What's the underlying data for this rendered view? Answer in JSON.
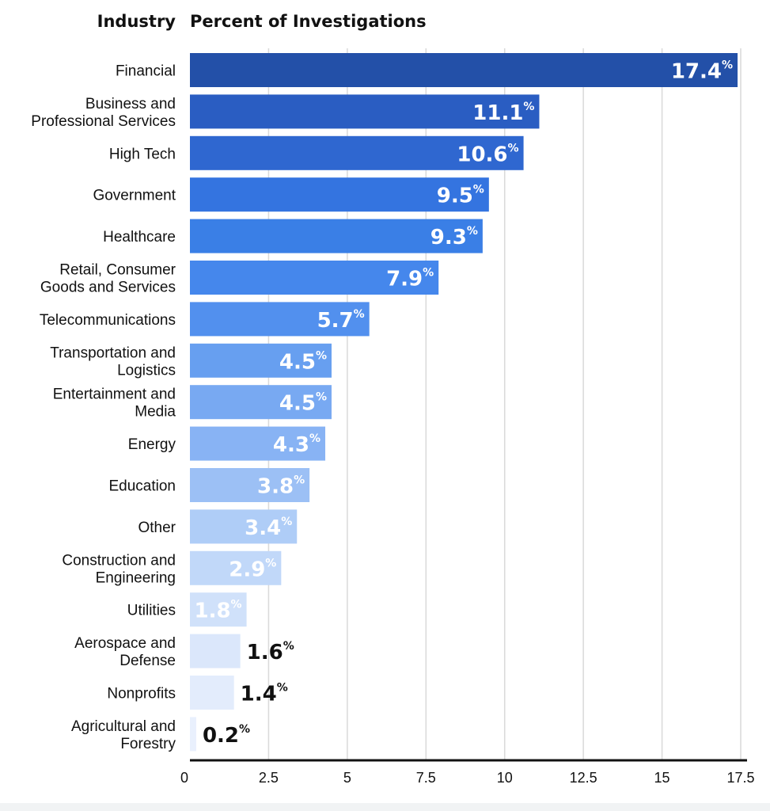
{
  "chart_data": {
    "type": "bar",
    "orientation": "horizontal",
    "category_header": "Industry",
    "value_header": "Percent of Investigations",
    "value_suffix": "%",
    "categories": [
      [
        "Financial"
      ],
      [
        "Business and",
        "Professional Services"
      ],
      [
        "High Tech"
      ],
      [
        "Government"
      ],
      [
        "Healthcare"
      ],
      [
        "Retail, Consumer",
        "Goods and Services"
      ],
      [
        "Telecommunications"
      ],
      [
        "Transportation and",
        "Logistics"
      ],
      [
        "Entertainment and",
        "Media"
      ],
      [
        "Energy"
      ],
      [
        "Education"
      ],
      [
        "Other"
      ],
      [
        "Construction and",
        "Engineering"
      ],
      [
        "Utilities"
      ],
      [
        "Aerospace and",
        "Defense"
      ],
      [
        "Nonprofits"
      ],
      [
        "Agricultural and",
        "Forestry"
      ]
    ],
    "values": [
      17.4,
      11.1,
      10.6,
      9.5,
      9.3,
      7.9,
      5.7,
      4.5,
      4.5,
      4.3,
      3.8,
      3.4,
      2.9,
      1.8,
      1.6,
      1.4,
      0.2
    ],
    "value_labels": [
      "17.4",
      "11.1",
      "10.6",
      "9.5",
      "9.3",
      "7.9",
      "5.7",
      "4.5",
      "4.5",
      "4.3",
      "3.8",
      "3.4",
      "2.9",
      "1.8",
      "1.6",
      "1.4",
      "0.2"
    ],
    "bar_colors": [
      "#2350a8",
      "#2a5dc2",
      "#2f67d0",
      "#3474e0",
      "#3a7fe6",
      "#4587ec",
      "#5290ee",
      "#679ff0",
      "#78a9f2",
      "#88b3f4",
      "#9cc0f5",
      "#afcdf7",
      "#c1d8f9",
      "#d0e1fa",
      "#dbe7fb",
      "#e3ecfc",
      "#e9f0fd"
    ],
    "label_colors": [
      "#ffffff",
      "#ffffff",
      "#ffffff",
      "#ffffff",
      "#ffffff",
      "#ffffff",
      "#ffffff",
      "#ffffff",
      "#ffffff",
      "#ffffff",
      "#ffffff",
      "#ffffff",
      "#ffffff",
      "#ffffff",
      "#111111",
      "#111111",
      "#111111"
    ],
    "xlim": [
      0,
      17.5
    ],
    "xticks": [
      0,
      2.5,
      5,
      7.5,
      10,
      12.5,
      15,
      17.5
    ],
    "xtick_labels": [
      "0",
      "2.5",
      "5",
      "7.5",
      "10",
      "12.5",
      "15",
      "17.5"
    ],
    "grid": true,
    "gridline_color": "#d9d9d9",
    "axis_color": "#111111"
  }
}
